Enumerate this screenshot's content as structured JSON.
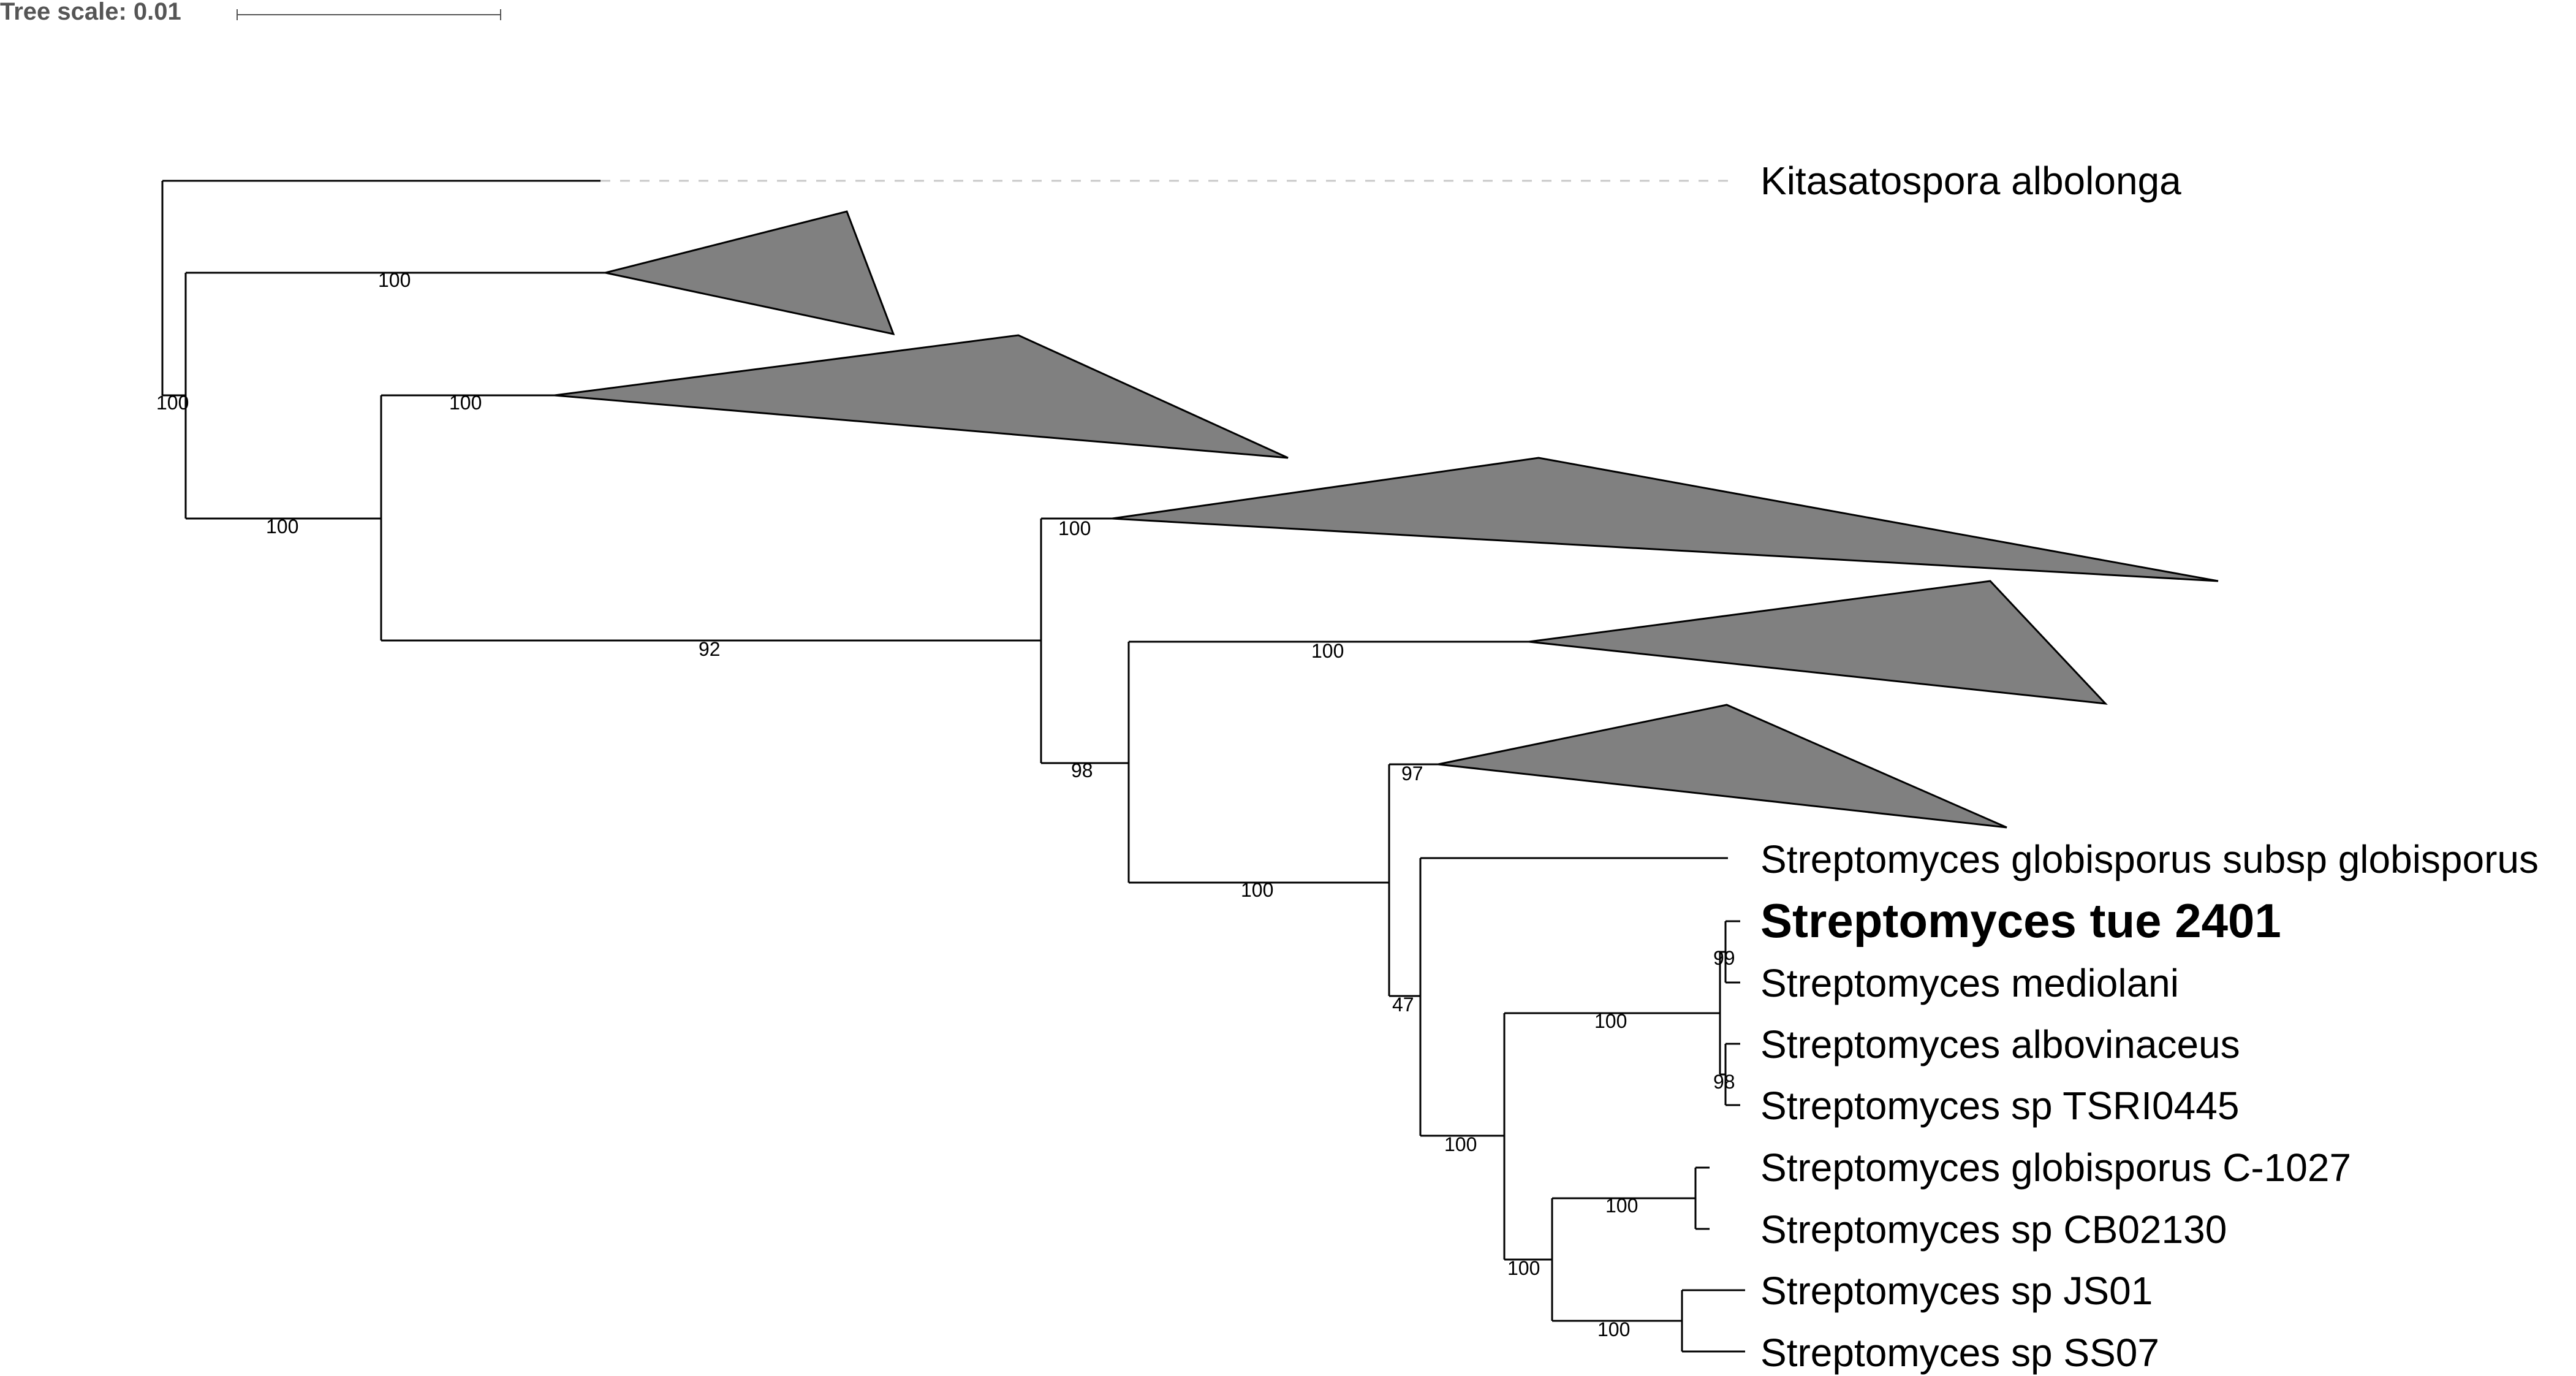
{
  "scale": {
    "label": "Tree scale: 0.01"
  },
  "leaves": {
    "kitasatospora": "Kitasatospora albolonga",
    "globisporus_subsp": "Streptomyces globisporus subsp globisporus",
    "tue2401": "Streptomyces tue 2401",
    "mediolani": "Streptomyces mediolani",
    "albovinaceus": "Streptomyces albovinaceus",
    "tsri0445": "Streptomyces sp TSRI0445",
    "globisporus_c1027": "Streptomyces globisporus C-1027",
    "cb02130": "Streptomyces sp CB02130",
    "js01": "Streptomyces sp JS01",
    "ss07": "Streptomyces sp SS07"
  },
  "support": {
    "root": "100",
    "clade_a": "100",
    "node_b": "100",
    "clade_b": "100",
    "node_c": "92",
    "clade_c": "100",
    "node_d": "98",
    "clade_d": "100",
    "node_e": "100",
    "clade_e": "97",
    "node_f": "47",
    "node_g": "100",
    "node_h": "100",
    "node_tue": "99",
    "node_tsri": "98",
    "node_i": "100",
    "node_c1027": "100",
    "node_js": "100"
  }
}
